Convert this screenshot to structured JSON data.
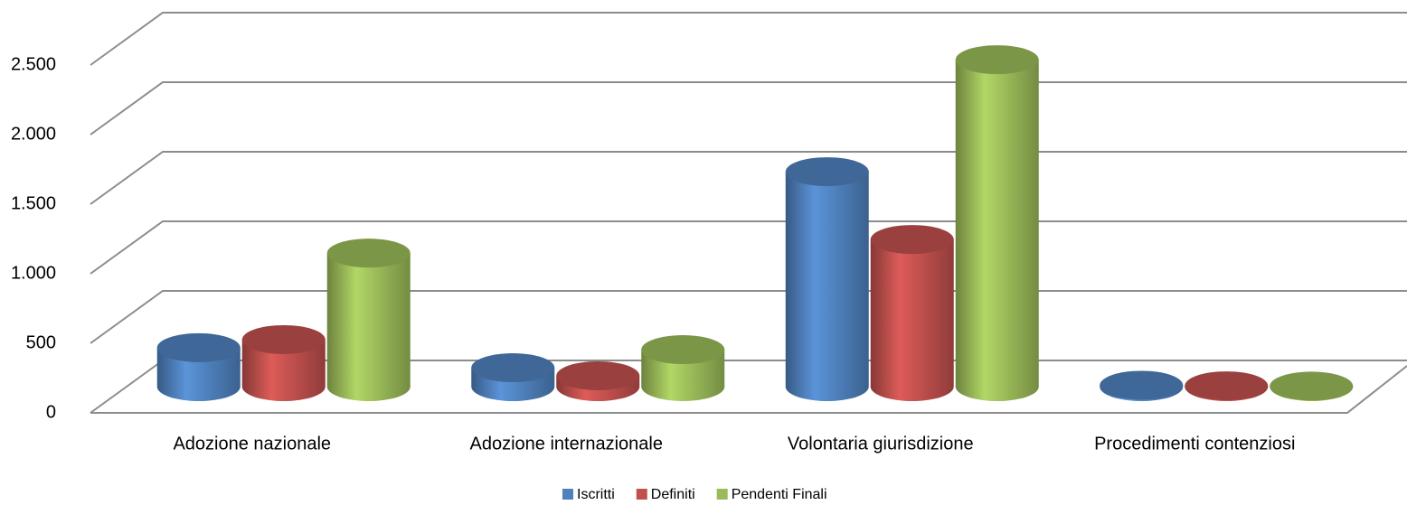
{
  "chart_data": {
    "type": "bar3d",
    "categories": [
      "Adozione nazionale",
      "Adozione internazionale",
      "Volontaria giurisdizione",
      "Procedimenti contenziosi"
    ],
    "series": [
      {
        "name": "Iscritti",
        "color": "#4f81bd",
        "values": [
          280,
          136,
          1545,
          10
        ]
      },
      {
        "name": "Definiti",
        "color": "#c0504d",
        "values": [
          338,
          78,
          1058,
          6
        ]
      },
      {
        "name": "Pendenti Finali",
        "color": "#9bbb59",
        "values": [
          960,
          266,
          2350,
          4
        ]
      }
    ],
    "ylim": [
      0,
      2500
    ],
    "yticks": [
      0,
      500,
      {
        "value": 1000,
        "label": "1.000"
      },
      {
        "value": 1500,
        "label": "1.500"
      },
      {
        "value": 2000,
        "label": "2.000"
      },
      {
        "value": 2500,
        "label": "2.500"
      }
    ],
    "grid": true,
    "legend": "bottom"
  }
}
